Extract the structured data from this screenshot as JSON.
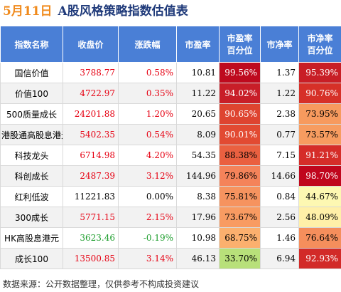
{
  "header": {
    "date": "5月11日",
    "title": "A股风格策略指数估值表"
  },
  "table": {
    "columns": [
      "指数名称",
      "收盘价",
      "涨跌幅",
      "市盈率",
      "市盈率\n百分位",
      "市净率",
      "市净率\n百分位"
    ],
    "rows": [
      [
        "国信价值",
        "3788.77",
        "0.58%",
        "10.81",
        "99.56%",
        "1.37",
        "95.39%"
      ],
      [
        "价值100",
        "4722.97",
        "0.35%",
        "11.22",
        "94.02%",
        "1.22",
        "90.76%"
      ],
      [
        "500质量成长",
        "24201.88",
        "1.20%",
        "20.65",
        "90.65%",
        "2.38",
        "73.95%"
      ],
      [
        "港股通高股息港元",
        "5402.35",
        "0.54%",
        "8.09",
        "90.01%",
        "0.77",
        "73.57%"
      ],
      [
        "科技龙头",
        "6714.98",
        "4.20%",
        "54.35",
        "88.38%",
        "7.15",
        "91.21%"
      ],
      [
        "科创成长",
        "2487.39",
        "3.12%",
        "144.96",
        "79.86%",
        "14.66",
        "98.70%"
      ],
      [
        "红利低波",
        "11221.83",
        "0.00%",
        "8.38",
        "75.81%",
        "0.84",
        "44.67%"
      ],
      [
        "300成长",
        "5771.15",
        "2.15%",
        "17.96",
        "73.67%",
        "2.56",
        "48.09%"
      ],
      [
        "HK高股息港元",
        "3623.46",
        "-0.19%",
        "10.98",
        "68.75%",
        "1.46",
        "76.64%"
      ],
      [
        "成长100",
        "13500.85",
        "3.14%",
        "46.13",
        "33.70%",
        "6.94",
        "92.93%"
      ]
    ],
    "price_colors": [
      "#e60012",
      "#e60012",
      "#e60012",
      "#e60012",
      "#e60012",
      "#e60012",
      "#000000",
      "#e60012",
      "#1e9e2e",
      "#e60012"
    ],
    "pe_pct_colors": [
      "#be0a1e",
      "#c81e28",
      "#de4430",
      "#e24a32",
      "#ea6040",
      "#f4835a",
      "#f6935f",
      "#f89b62",
      "#fbb06e",
      "#b8e07a"
    ],
    "pb_pct_colors": [
      "#c81e26",
      "#d63028",
      "#f79a5e",
      "#f79c60",
      "#d52d29",
      "#c0061d",
      "#fdf8b2",
      "#fff0a8",
      "#f58e5c",
      "#d22a28"
    ]
  },
  "footer": "数据来源：公开数据整理，仅供参考不构成投资建议"
}
